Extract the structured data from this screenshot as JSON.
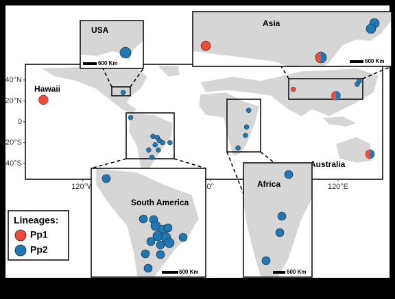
{
  "labels": {
    "hawaii": "Hawaii",
    "australia": "Australia"
  },
  "insets": {
    "usa": {
      "title": "USA",
      "scale": "600 Km"
    },
    "asia": {
      "title": "Asia",
      "scale": "600 Km"
    },
    "south_america": {
      "title": "South America",
      "scale": "600 Km"
    },
    "africa": {
      "title": "Africa",
      "scale": "600 Km"
    }
  },
  "map": {
    "xlim": [
      -174,
      162
    ],
    "ylim": [
      -55,
      55
    ],
    "xticks": [
      {
        "value": -120,
        "label": "120°W"
      },
      {
        "value": 0,
        "label": "0°"
      },
      {
        "value": 120,
        "label": "120°E"
      }
    ],
    "yticks": [
      {
        "value": 40,
        "label": "40°N"
      },
      {
        "value": 20,
        "label": "20°N"
      },
      0,
      {
        "value": -20,
        "label": "20°S"
      },
      {
        "value": -40,
        "label": "40°S"
      }
    ],
    "points": [
      {
        "lon": -157,
        "lat": 21,
        "lineages": [
          "Pp1"
        ]
      },
      {
        "lon": -82,
        "lat": 28,
        "lineages": [
          "Pp2"
        ]
      },
      {
        "lon": 78,
        "lat": 31,
        "lineages": [
          "Pp1"
        ]
      },
      {
        "lon": 118,
        "lat": 25,
        "lineages": [
          "Pp1",
          "Pp2"
        ]
      },
      {
        "lon": 138,
        "lat": 36,
        "lineages": [
          "Pp2"
        ]
      },
      {
        "lon": 140,
        "lat": 39,
        "lineages": [
          "Pp2"
        ]
      },
      {
        "lon": -75,
        "lat": 4,
        "lineages": [
          "Pp2"
        ]
      },
      {
        "lon": -54,
        "lat": -14,
        "lineages": [
          "Pp2"
        ]
      },
      {
        "lon": -50,
        "lat": -15,
        "lineages": [
          "Pp2"
        ]
      },
      {
        "lon": -48,
        "lat": -18,
        "lineages": [
          "Pp2"
        ]
      },
      {
        "lon": -45,
        "lat": -20,
        "lineages": [
          "Pp2"
        ]
      },
      {
        "lon": -52,
        "lat": -22,
        "lineages": [
          "Pp2"
        ]
      },
      {
        "lon": -38,
        "lat": -20,
        "lineages": [
          "Pp2"
        ]
      },
      {
        "lon": -58,
        "lat": -27,
        "lineages": [
          "Pp2"
        ]
      },
      {
        "lon": -49,
        "lat": -27,
        "lineages": [
          "Pp2"
        ]
      },
      {
        "lon": -55,
        "lat": -34,
        "lineages": [
          "Pp2"
        ]
      },
      {
        "lon": 36,
        "lat": 11,
        "lineages": [
          "Pp2"
        ]
      },
      {
        "lon": 34,
        "lat": -5,
        "lineages": [
          "Pp2"
        ]
      },
      {
        "lon": 33,
        "lat": -13,
        "lineages": [
          "Pp2"
        ]
      },
      {
        "lon": 26,
        "lat": -25,
        "lineages": [
          "Pp2"
        ]
      },
      {
        "lon": 150,
        "lat": -31,
        "lineages": [
          "Pp1",
          "Pp2"
        ]
      }
    ]
  },
  "legend": {
    "title": "Lineages:",
    "items": [
      {
        "name": "Pp1",
        "color": "#f04a3a"
      },
      {
        "name": "Pp2",
        "color": "#1f77b4"
      }
    ]
  }
}
